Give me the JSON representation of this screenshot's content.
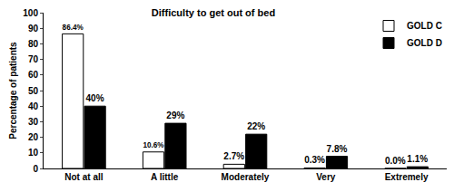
{
  "chart_data": {
    "type": "bar",
    "title": "Difficulty to get out of bed",
    "y_label": "Percentage of patients",
    "categories": [
      "Not at all",
      "A little",
      "Moderately",
      "Very",
      "Extremely"
    ],
    "series": [
      {
        "name": "GOLD C",
        "color": "#ffffff",
        "values": [
          86.4,
          10.6,
          2.7,
          0.3,
          0.0
        ],
        "value_labels": [
          "86.4%",
          "10.6%",
          "2.7%",
          "0.3%",
          "0.0%"
        ]
      },
      {
        "name": "GOLD D",
        "color": "#000000",
        "values": [
          40,
          29,
          22,
          7.8,
          1.1
        ],
        "value_labels": [
          "40%",
          "29%",
          "22%",
          "7.8%",
          "1.1%"
        ]
      }
    ],
    "ylim": [
      0,
      100
    ],
    "yticks": [
      0,
      10,
      20,
      30,
      40,
      50,
      60,
      70,
      80,
      90,
      100
    ],
    "grid": false,
    "legend": "upper right",
    "data_labels": true
  }
}
